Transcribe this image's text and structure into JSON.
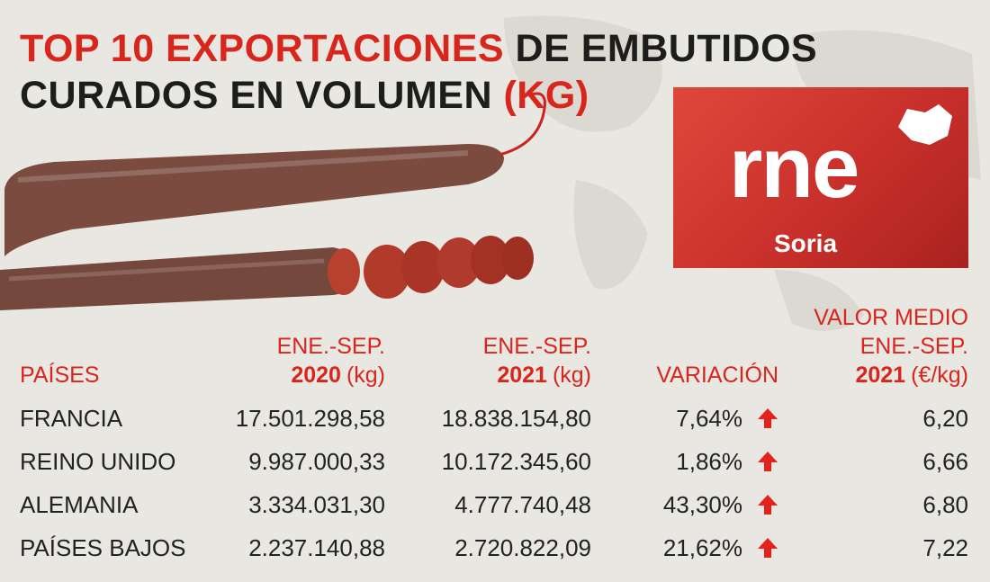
{
  "title": {
    "line1": {
      "red": "TOP 10 EXPORTACIONES",
      "black": "DE EMBUTIDOS"
    },
    "line2": {
      "black": "CURADOS EN VOLUMEN",
      "red": "(KG)"
    }
  },
  "logo": {
    "brand": "rne",
    "region": "Soria"
  },
  "table": {
    "headers": [
      "PAÍSES",
      {
        "period": "ENE.-SEP.",
        "year": "2020",
        "unit": "(kg)"
      },
      {
        "period": "ENE.-SEP.",
        "year": "2021",
        "unit": "(kg)"
      },
      "VARIACIÓN",
      {
        "label": "VALOR MEDIO",
        "period": "ENE.-SEP.",
        "year": "2021",
        "unit": "(€/kg)"
      }
    ],
    "rows": [
      [
        "FRANCIA",
        "17.501.298,58",
        "18.838.154,80",
        "7,64%",
        "6,20"
      ],
      [
        "REINO UNIDO",
        "9.987.000,33",
        "10.172.345,60",
        "1,86%",
        "6,66"
      ],
      [
        "ALEMANIA",
        "3.334.031,30",
        "4.777.740,48",
        "43,30%",
        "6,80"
      ],
      [
        "PAÍSES BAJOS",
        "2.237.140,88",
        "2.720.822,09",
        "21,62%",
        "7,22"
      ]
    ]
  }
}
